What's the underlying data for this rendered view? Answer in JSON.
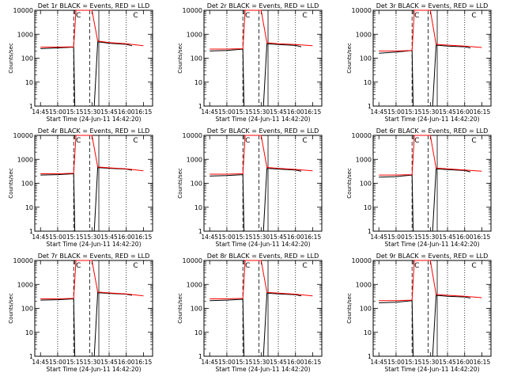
{
  "chart_data": [
    {
      "type": "line",
      "title": "Det 1r BLACK = Events, RED = LLD",
      "xlabel": "Start Time (24-Jun-11 14:42:20)",
      "ylabel": "Counts/sec",
      "yscale": "log",
      "ylim": [
        1,
        10000
      ],
      "xticks": [
        "14:45",
        "15:00",
        "15:15",
        "15:30",
        "15:45",
        "16:00",
        "16:15"
      ],
      "yticks": [
        "1",
        "10",
        "100",
        "1000",
        "10000"
      ],
      "markers": [
        {
          "label": "C",
          "x": "15:16"
        },
        {
          "label": "C",
          "x": "16:06"
        }
      ],
      "series": [
        {
          "name": "Events",
          "color": "#000000",
          "x": [
            "14:45",
            "15:00",
            "15:14",
            "15:15",
            "15:32",
            "15:35",
            "15:45",
            "16:00",
            "16:05"
          ],
          "values": [
            250,
            270,
            290,
            0,
            0,
            480,
            420,
            380,
            330
          ]
        },
        {
          "name": "LLD",
          "color": "#ff0000",
          "x": [
            "14:45",
            "15:00",
            "15:14",
            "15:16",
            "15:30",
            "15:35",
            "15:45",
            "16:00",
            "16:15"
          ],
          "values": [
            290,
            290,
            300,
            10000,
            10000,
            520,
            450,
            400,
            330
          ]
        }
      ]
    },
    {
      "type": "line",
      "title": "Det 2r BLACK = Events, RED = LLD",
      "xlabel": "Start Time (24-Jun-11 14:42:20)",
      "ylabel": "Counts/sec",
      "yscale": "log",
      "ylim": [
        1,
        10000
      ],
      "xticks": [
        "14:45",
        "15:00",
        "15:15",
        "15:30",
        "15:45",
        "16:00",
        "16:15"
      ],
      "yticks": [
        "1",
        "10",
        "100",
        "1000",
        "10000"
      ],
      "markers": [
        {
          "label": "C",
          "x": "15:16"
        },
        {
          "label": "C",
          "x": "16:06"
        }
      ],
      "series": [
        {
          "name": "Events",
          "color": "#000000",
          "x": [
            "14:45",
            "15:00",
            "15:14",
            "15:15",
            "15:32",
            "15:35",
            "15:45",
            "16:00",
            "16:05"
          ],
          "values": [
            200,
            210,
            240,
            0,
            0,
            400,
            370,
            340,
            300
          ]
        },
        {
          "name": "LLD",
          "color": "#ff0000",
          "x": [
            "14:45",
            "15:00",
            "15:14",
            "15:16",
            "15:30",
            "15:35",
            "15:45",
            "16:00",
            "16:15"
          ],
          "values": [
            240,
            240,
            250,
            10000,
            10000,
            440,
            400,
            370,
            330
          ]
        }
      ]
    },
    {
      "type": "line",
      "title": "Det 3r BLACK = Events, RED = LLD",
      "xlabel": "Start Time (24-Jun-11 14:42:20)",
      "ylabel": "Counts/sec",
      "yscale": "log",
      "ylim": [
        1,
        10000
      ],
      "xticks": [
        "14:45",
        "15:00",
        "15:15",
        "15:30",
        "15:45",
        "16:00",
        "16:15"
      ],
      "yticks": [
        "1",
        "10",
        "100",
        "1000",
        "10000"
      ],
      "markers": [
        {
          "label": "C",
          "x": "15:16"
        },
        {
          "label": "C",
          "x": "16:06"
        }
      ],
      "series": [
        {
          "name": "Events",
          "color": "#000000",
          "x": [
            "14:45",
            "15:00",
            "15:14",
            "15:15",
            "15:32",
            "15:35",
            "15:45",
            "16:00",
            "16:05"
          ],
          "values": [
            160,
            180,
            210,
            0,
            0,
            350,
            320,
            300,
            270
          ]
        },
        {
          "name": "LLD",
          "color": "#ff0000",
          "x": [
            "14:45",
            "15:00",
            "15:14",
            "15:16",
            "15:30",
            "15:35",
            "15:45",
            "16:00",
            "16:15"
          ],
          "values": [
            200,
            200,
            210,
            10000,
            10000,
            380,
            350,
            320,
            280
          ]
        }
      ]
    },
    {
      "type": "line",
      "title": "Det 4r BLACK = Events, RED = LLD",
      "xlabel": "Start Time (24-Jun-11 14:42:20)",
      "ylabel": "Counts/sec",
      "yscale": "log",
      "ylim": [
        1,
        10000
      ],
      "xticks": [
        "14:45",
        "15:00",
        "15:15",
        "15:30",
        "15:45",
        "16:00",
        "16:15"
      ],
      "yticks": [
        "1",
        "10",
        "100",
        "1000",
        "10000"
      ],
      "markers": [
        {
          "label": "C",
          "x": "15:16"
        },
        {
          "label": "C",
          "x": "16:06"
        }
      ],
      "series": [
        {
          "name": "Events",
          "color": "#000000",
          "x": [
            "14:45",
            "15:00",
            "15:14",
            "15:15",
            "15:32",
            "15:35",
            "15:45",
            "16:00",
            "16:05"
          ],
          "values": [
            220,
            230,
            250,
            0,
            0,
            450,
            420,
            390,
            350
          ]
        },
        {
          "name": "LLD",
          "color": "#ff0000",
          "x": [
            "14:45",
            "15:00",
            "15:14",
            "15:16",
            "15:30",
            "15:35",
            "15:45",
            "16:00",
            "16:15"
          ],
          "values": [
            250,
            250,
            260,
            10000,
            10000,
            480,
            440,
            400,
            330
          ]
        }
      ]
    },
    {
      "type": "line",
      "title": "Det 5r BLACK = Events, RED = LLD",
      "xlabel": "Start Time (24-Jun-11 14:42:20)",
      "ylabel": "Counts/sec",
      "yscale": "log",
      "ylim": [
        1,
        10000
      ],
      "xticks": [
        "14:45",
        "15:00",
        "15:15",
        "15:30",
        "15:45",
        "16:00",
        "16:15"
      ],
      "yticks": [
        "1",
        "10",
        "100",
        "1000",
        "10000"
      ],
      "markers": [
        {
          "label": "C",
          "x": "15:16"
        },
        {
          "label": "C",
          "x": "16:06"
        }
      ],
      "series": [
        {
          "name": "Events",
          "color": "#000000",
          "x": [
            "14:45",
            "15:00",
            "15:14",
            "15:15",
            "15:32",
            "15:35",
            "15:45",
            "16:00",
            "16:05"
          ],
          "values": [
            200,
            210,
            230,
            0,
            0,
            420,
            390,
            360,
            320
          ]
        },
        {
          "name": "LLD",
          "color": "#ff0000",
          "x": [
            "14:45",
            "15:00",
            "15:14",
            "15:16",
            "15:30",
            "15:35",
            "15:45",
            "16:00",
            "16:15"
          ],
          "values": [
            240,
            240,
            250,
            10000,
            10000,
            460,
            420,
            380,
            330
          ]
        }
      ]
    },
    {
      "type": "line",
      "title": "Det 6r BLACK = Events, RED = LLD",
      "xlabel": "Start Time (24-Jun-11 14:42:20)",
      "ylabel": "Counts/sec",
      "yscale": "log",
      "ylim": [
        1,
        10000
      ],
      "xticks": [
        "14:45",
        "15:00",
        "15:15",
        "15:30",
        "15:45",
        "16:00",
        "16:15"
      ],
      "yticks": [
        "1",
        "10",
        "100",
        "1000",
        "10000"
      ],
      "markers": [
        {
          "label": "C",
          "x": "15:16"
        },
        {
          "label": "C",
          "x": "16:06"
        }
      ],
      "series": [
        {
          "name": "Events",
          "color": "#000000",
          "x": [
            "14:45",
            "15:00",
            "15:14",
            "15:15",
            "15:32",
            "15:35",
            "15:45",
            "16:00",
            "16:05"
          ],
          "values": [
            180,
            190,
            220,
            0,
            0,
            400,
            370,
            340,
            300
          ]
        },
        {
          "name": "LLD",
          "color": "#ff0000",
          "x": [
            "14:45",
            "15:00",
            "15:14",
            "15:16",
            "15:30",
            "15:35",
            "15:45",
            "16:00",
            "16:15"
          ],
          "values": [
            220,
            220,
            230,
            10000,
            10000,
            430,
            400,
            360,
            320
          ]
        }
      ]
    },
    {
      "type": "line",
      "title": "Det 7r BLACK = Events, RED = LLD",
      "xlabel": "Start Time (24-Jun-11 14:42:20)",
      "ylabel": "Counts/sec",
      "yscale": "log",
      "ylim": [
        1,
        10000
      ],
      "xticks": [
        "14:45",
        "15:00",
        "15:15",
        "15:30",
        "15:45",
        "16:00",
        "16:15"
      ],
      "yticks": [
        "1",
        "10",
        "100",
        "1000",
        "10000"
      ],
      "markers": [
        {
          "label": "C",
          "x": "15:16"
        },
        {
          "label": "C",
          "x": "16:06"
        }
      ],
      "series": [
        {
          "name": "Events",
          "color": "#000000",
          "x": [
            "14:45",
            "15:00",
            "15:14",
            "15:15",
            "15:32",
            "15:35",
            "15:45",
            "16:00",
            "16:05"
          ],
          "values": [
            220,
            230,
            250,
            0,
            0,
            450,
            420,
            390,
            350
          ]
        },
        {
          "name": "LLD",
          "color": "#ff0000",
          "x": [
            "14:45",
            "15:00",
            "15:14",
            "15:16",
            "15:30",
            "15:35",
            "15:45",
            "16:00",
            "16:15"
          ],
          "values": [
            250,
            250,
            260,
            10000,
            10000,
            480,
            440,
            400,
            330
          ]
        }
      ]
    },
    {
      "type": "line",
      "title": "Det 8r BLACK = Events, RED = LLD",
      "xlabel": "Start Time (24-Jun-11 14:42:20)",
      "ylabel": "Counts/sec",
      "yscale": "log",
      "ylim": [
        1,
        10000
      ],
      "xticks": [
        "14:45",
        "15:00",
        "15:15",
        "15:30",
        "15:45",
        "16:00",
        "16:15"
      ],
      "yticks": [
        "1",
        "10",
        "100",
        "1000",
        "10000"
      ],
      "markers": [
        {
          "label": "C",
          "x": "15:16"
        },
        {
          "label": "C",
          "x": "16:06"
        }
      ],
      "series": [
        {
          "name": "Events",
          "color": "#000000",
          "x": [
            "14:45",
            "15:00",
            "15:14",
            "15:15",
            "15:32",
            "15:35",
            "15:45",
            "16:00",
            "16:05"
          ],
          "values": [
            210,
            220,
            240,
            0,
            0,
            430,
            400,
            370,
            330
          ]
        },
        {
          "name": "LLD",
          "color": "#ff0000",
          "x": [
            "14:45",
            "15:00",
            "15:14",
            "15:16",
            "15:30",
            "15:35",
            "15:45",
            "16:00",
            "16:15"
          ],
          "values": [
            250,
            250,
            260,
            10000,
            10000,
            470,
            430,
            390,
            330
          ]
        }
      ]
    },
    {
      "type": "line",
      "title": "Det 9r BLACK = Events, RED = LLD",
      "xlabel": "Start Time (24-Jun-11 14:42:20)",
      "ylabel": "Counts/sec",
      "yscale": "log",
      "ylim": [
        1,
        10000
      ],
      "xticks": [
        "14:45",
        "15:00",
        "15:15",
        "15:30",
        "15:45",
        "16:00",
        "16:15"
      ],
      "yticks": [
        "1",
        "10",
        "100",
        "1000",
        "10000"
      ],
      "markers": [
        {
          "label": "C",
          "x": "15:16"
        },
        {
          "label": "C",
          "x": "16:06"
        }
      ],
      "series": [
        {
          "name": "Events",
          "color": "#000000",
          "x": [
            "14:45",
            "15:00",
            "15:14",
            "15:15",
            "15:32",
            "15:35",
            "15:45",
            "16:00",
            "16:05"
          ],
          "values": [
            170,
            180,
            210,
            0,
            0,
            350,
            320,
            300,
            270
          ]
        },
        {
          "name": "LLD",
          "color": "#ff0000",
          "x": [
            "14:45",
            "15:00",
            "15:14",
            "15:16",
            "15:30",
            "15:35",
            "15:45",
            "16:00",
            "16:15"
          ],
          "values": [
            210,
            210,
            220,
            10000,
            10000,
            380,
            350,
            320,
            280
          ]
        }
      ]
    }
  ]
}
